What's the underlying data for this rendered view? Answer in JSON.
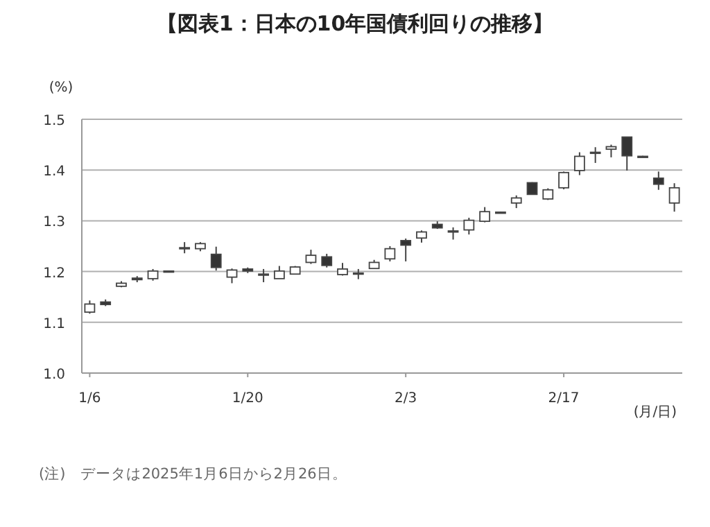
{
  "chart_data": {
    "type": "candlestick",
    "title": "【図表1：日本の10年国債利回りの推移】",
    "ylabel": "(%)",
    "xlabel": "(月/日)",
    "categories": [
      "1/6",
      null,
      null,
      null,
      null,
      null,
      null,
      null,
      null,
      null,
      "1/20",
      null,
      null,
      null,
      null,
      null,
      null,
      null,
      null,
      null,
      "2/3",
      null,
      null,
      null,
      null,
      null,
      null,
      null,
      null,
      null,
      "2/17",
      null,
      null,
      null,
      null,
      null,
      null,
      null
    ],
    "ohlc": [
      [
        1.12,
        1.143,
        1.117,
        1.136
      ],
      [
        1.14,
        1.145,
        1.132,
        1.135
      ],
      [
        1.171,
        1.181,
        1.169,
        1.177
      ],
      [
        1.187,
        1.191,
        1.179,
        1.184
      ],
      [
        1.186,
        1.205,
        1.182,
        1.201
      ],
      [
        1.201,
        1.202,
        1.2,
        1.201
      ],
      [
        1.247,
        1.258,
        1.236,
        1.247
      ],
      [
        1.245,
        1.258,
        1.24,
        1.255
      ],
      [
        1.234,
        1.249,
        1.202,
        1.208
      ],
      [
        1.189,
        1.206,
        1.177,
        1.203
      ],
      [
        1.205,
        1.208,
        1.197,
        1.201
      ],
      [
        1.195,
        1.205,
        1.179,
        1.195
      ],
      [
        1.186,
        1.211,
        1.186,
        1.201
      ],
      [
        1.195,
        1.211,
        1.194,
        1.209
      ],
      [
        1.218,
        1.243,
        1.215,
        1.232
      ],
      [
        1.229,
        1.235,
        1.208,
        1.212
      ],
      [
        1.194,
        1.217,
        1.192,
        1.205
      ],
      [
        1.197,
        1.205,
        1.185,
        1.197
      ],
      [
        1.206,
        1.223,
        1.205,
        1.218
      ],
      [
        1.225,
        1.25,
        1.22,
        1.245
      ],
      [
        1.261,
        1.265,
        1.22,
        1.252
      ],
      [
        1.266,
        1.281,
        1.257,
        1.278
      ],
      [
        1.293,
        1.299,
        1.284,
        1.286
      ],
      [
        1.28,
        1.287,
        1.263,
        1.28
      ],
      [
        1.282,
        1.306,
        1.273,
        1.301
      ],
      [
        1.299,
        1.327,
        1.297,
        1.318
      ],
      [
        1.317,
        1.318,
        1.316,
        1.317
      ],
      [
        1.335,
        1.35,
        1.325,
        1.345
      ],
      [
        1.375,
        1.376,
        1.352,
        1.352
      ],
      [
        1.343,
        1.364,
        1.341,
        1.361
      ],
      [
        1.365,
        1.397,
        1.362,
        1.395
      ],
      [
        1.399,
        1.435,
        1.39,
        1.427
      ],
      [
        1.435,
        1.445,
        1.414,
        1.435
      ],
      [
        1.441,
        1.45,
        1.425,
        1.446
      ],
      [
        1.465,
        1.465,
        1.399,
        1.428
      ],
      [
        1.427,
        1.428,
        1.426,
        1.427
      ],
      [
        1.384,
        1.397,
        1.361,
        1.372
      ],
      [
        1.335,
        1.374,
        1.318,
        1.365
      ]
    ],
    "ylim": [
      1.0,
      1.5
    ],
    "yticks": [
      {
        "value": 1.0,
        "label": "1.0"
      },
      {
        "value": 1.1,
        "label": "1.1"
      },
      {
        "value": 1.2,
        "label": "1.2"
      },
      {
        "value": 1.3,
        "label": "1.3"
      },
      {
        "value": 1.4,
        "label": "1.4"
      },
      {
        "value": 1.5,
        "label": "1.5"
      }
    ],
    "grid": "y",
    "annotations": [
      "(注)　データは2025年1月6日から2月26日。"
    ]
  }
}
